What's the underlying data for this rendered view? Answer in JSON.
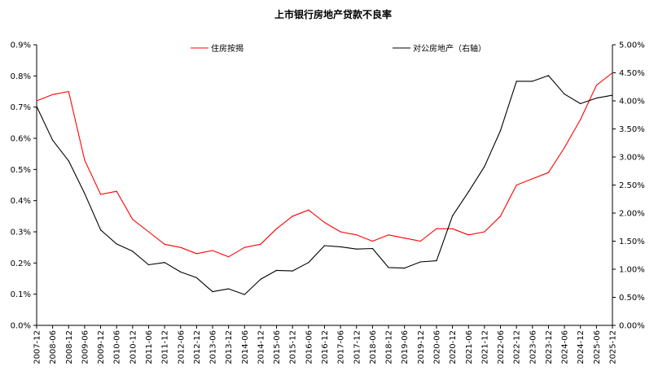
{
  "chart_data": {
    "type": "line",
    "title": "上市银行房地产贷款不良率",
    "categories": [
      "2007-12",
      "2008-06",
      "2008-12",
      "2009-06",
      "2009-12",
      "2010-06",
      "2010-12",
      "2011-06",
      "2011-12",
      "2012-06",
      "2012-12",
      "2013-06",
      "2013-12",
      "2014-06",
      "2014-12",
      "2015-06",
      "2015-12",
      "2016-06",
      "2016-12",
      "2017-06",
      "2017-12",
      "2018-06",
      "2018-12",
      "2019-06",
      "2019-12",
      "2020-06",
      "2020-12",
      "2021-06",
      "2021-12",
      "2022-06",
      "2022-12",
      "2023-06",
      "2023-12",
      "2024-06",
      "2024-12",
      "2025-06",
      "2025-12"
    ],
    "y_left": {
      "min": 0,
      "max": 0.9,
      "ticks": [
        "0.0%",
        "0.1%",
        "0.2%",
        "0.3%",
        "0.4%",
        "0.5%",
        "0.6%",
        "0.7%",
        "0.8%",
        "0.9%"
      ]
    },
    "y_right": {
      "min": 0,
      "max": 5.0,
      "ticks": [
        "0.00%",
        "0.50%",
        "1.00%",
        "1.50%",
        "2.00%",
        "2.50%",
        "3.00%",
        "3.50%",
        "4.00%",
        "4.50%",
        "5.00%"
      ]
    },
    "legend_position": "top",
    "grid": false,
    "series": [
      {
        "name": "住房按揭",
        "axis": "left",
        "color": "#ff0000",
        "values": [
          0.72,
          0.74,
          0.75,
          0.53,
          0.42,
          0.43,
          0.34,
          0.3,
          0.26,
          0.25,
          0.23,
          0.24,
          0.22,
          0.25,
          0.26,
          0.31,
          0.35,
          0.37,
          0.33,
          0.3,
          0.29,
          0.27,
          0.29,
          0.28,
          0.27,
          0.31,
          0.31,
          0.29,
          0.3,
          0.35,
          0.45,
          0.47,
          0.49,
          0.57,
          0.66,
          0.77,
          0.81
        ]
      },
      {
        "name": "对公房地产（右轴）",
        "axis": "right",
        "color": "#000000",
        "values": [
          3.9,
          3.3,
          2.93,
          2.35,
          1.7,
          1.45,
          1.32,
          1.08,
          1.12,
          0.95,
          0.85,
          0.6,
          0.65,
          0.55,
          0.82,
          0.98,
          0.97,
          1.12,
          1.42,
          1.4,
          1.36,
          1.37,
          1.03,
          1.02,
          1.13,
          1.15,
          1.95,
          2.38,
          2.83,
          3.47,
          4.35,
          4.35,
          4.45,
          4.12,
          3.95,
          4.05,
          4.1
        ]
      }
    ]
  }
}
